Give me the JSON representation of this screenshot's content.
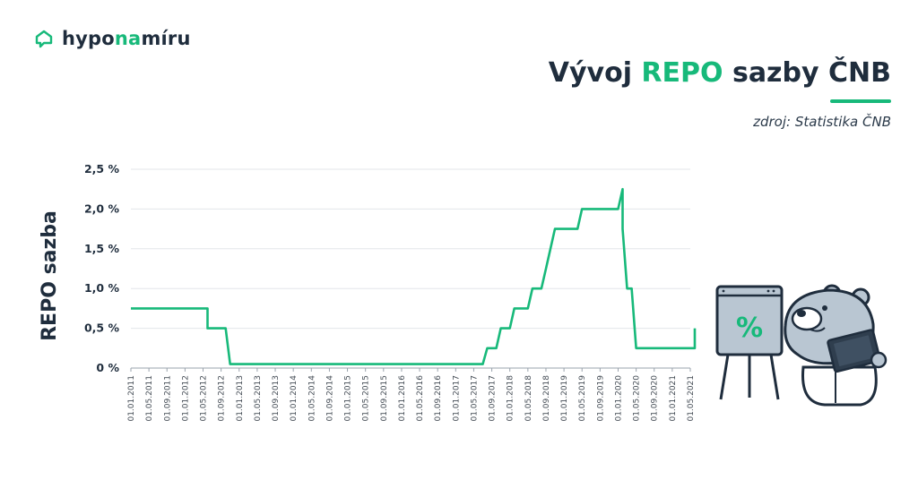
{
  "brand": {
    "logo_parts": [
      "hypo",
      "na",
      "míru"
    ],
    "logo_icon": "house-chat-icon",
    "accent_color": "#17b97a",
    "dark_color": "#1f2d3d"
  },
  "header": {
    "title_parts": [
      "Vývoj ",
      "REPO",
      " sazby ČNB"
    ],
    "source": "zdroj: Statistika ČNB"
  },
  "mascot": {
    "board_symbol": "%"
  },
  "chart_data": {
    "type": "line",
    "title": "Vývoj REPO sazby ČNB",
    "ylabel": "REPO sazba",
    "xlabel": "",
    "grid": true,
    "legend": "none",
    "line_color": "#17b97a",
    "ylim": [
      0,
      2.5
    ],
    "yticks": [
      {
        "value": 0,
        "label": "0 %"
      },
      {
        "value": 0.5,
        "label": "0,5 %"
      },
      {
        "value": 1.0,
        "label": "1,0 %"
      },
      {
        "value": 1.5,
        "label": "1,5 %"
      },
      {
        "value": 2.0,
        "label": "2,0 %"
      },
      {
        "value": 2.5,
        "label": "2,5 %"
      }
    ],
    "xticks": [
      "01.01.2011",
      "01.05.2011",
      "01.09.2011",
      "01.01.2012",
      "01.05.2012",
      "01.09.2012",
      "01.01.2013",
      "01.05.2013",
      "01.09.2013",
      "01.01.2014",
      "01.05.2014",
      "01.09.2014",
      "01.01.2015",
      "01.05.2015",
      "01.09.2015",
      "01.01.2016",
      "01.05.2016",
      "01.09.2016",
      "01.01.2017",
      "01.05.2017",
      "01.09.2017",
      "01.01.2018",
      "01.05.2018",
      "01.09.2018",
      "01.01.2019",
      "01.05.2019",
      "01.09.2019",
      "01.01.2020",
      "01.05.2020",
      "01.09.2020",
      "01.01.2021",
      "01.05.2021"
    ],
    "series": [
      {
        "x": [
          "2011-01",
          "2012-06",
          "2012-06",
          "2012-10",
          "2012-11",
          "2017-07",
          "2017-08",
          "2017-10",
          "2017-11",
          "2018-01",
          "2018-02",
          "2018-05",
          "2018-06",
          "2018-08",
          "2018-09",
          "2018-10",
          "2018-11",
          "2019-04",
          "2019-05",
          "2020-01",
          "2020-02",
          "2020-02",
          "2020-03",
          "2020-04",
          "2020-05",
          "2021-06",
          "2021-06"
        ],
        "y": [
          0.75,
          0.75,
          0.5,
          0.5,
          0.05,
          0.05,
          0.25,
          0.25,
          0.5,
          0.5,
          0.75,
          0.75,
          1.0,
          1.0,
          1.25,
          1.5,
          1.75,
          1.75,
          2.0,
          2.0,
          2.25,
          1.75,
          1.0,
          1.0,
          0.25,
          0.25,
          0.5
        ]
      }
    ]
  }
}
